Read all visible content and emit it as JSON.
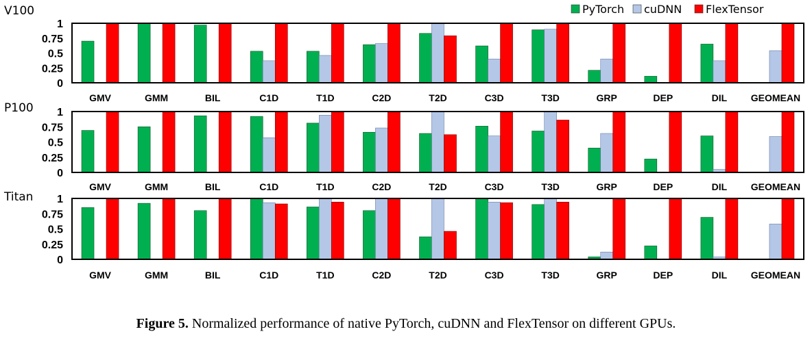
{
  "legend": [
    {
      "name": "PyTorch",
      "color": "#00b050"
    },
    {
      "name": "cuDNN",
      "color": "#b4c7e7"
    },
    {
      "name": "FlexTensor",
      "color": "#ff0000"
    }
  ],
  "caption": {
    "label": "Figure 5.",
    "text": " Normalized performance of native PyTorch, cuDNN and FlexTensor on different GPUs."
  },
  "chart_data": [
    {
      "type": "bar",
      "title": "V100",
      "categories": [
        "GMV",
        "GMM",
        "BIL",
        "C1D",
        "T1D",
        "C2D",
        "T2D",
        "C3D",
        "T3D",
        "GRP",
        "DEP",
        "DIL",
        "GEOMEAN"
      ],
      "yticks": [
        "0",
        "0.25",
        "0.5",
        "0.75",
        "1"
      ],
      "ylim": [
        0,
        1
      ],
      "series": [
        {
          "name": "PyTorch",
          "values": [
            0.7,
            1.0,
            0.97,
            0.53,
            0.53,
            0.64,
            0.83,
            0.62,
            0.89,
            0.21,
            0.11,
            0.65,
            null
          ]
        },
        {
          "name": "cuDNN",
          "values": [
            null,
            null,
            null,
            0.37,
            0.46,
            0.66,
            1.0,
            0.4,
            0.9,
            0.4,
            null,
            0.37,
            0.54
          ]
        },
        {
          "name": "FlexTensor",
          "values": [
            1.0,
            1.0,
            1.0,
            1.0,
            1.0,
            1.0,
            0.79,
            1.0,
            1.0,
            1.0,
            1.0,
            1.0,
            1.0
          ]
        }
      ]
    },
    {
      "type": "bar",
      "title": "P100",
      "categories": [
        "GMV",
        "GMM",
        "BIL",
        "C1D",
        "T1D",
        "C2D",
        "T2D",
        "C3D",
        "T3D",
        "GRP",
        "DEP",
        "DIL",
        "GEOMEAN"
      ],
      "yticks": [
        "0",
        "0.25",
        "0.5",
        "0.75",
        "1"
      ],
      "ylim": [
        0,
        1
      ],
      "series": [
        {
          "name": "PyTorch",
          "values": [
            0.69,
            0.75,
            0.93,
            0.92,
            0.81,
            0.66,
            0.64,
            0.76,
            0.68,
            0.4,
            0.22,
            0.6,
            null
          ]
        },
        {
          "name": "cuDNN",
          "values": [
            null,
            null,
            null,
            0.57,
            0.94,
            0.73,
            1.0,
            0.6,
            1.0,
            0.64,
            null,
            0.05,
            0.59
          ]
        },
        {
          "name": "FlexTensor",
          "values": [
            1.0,
            1.0,
            1.0,
            1.0,
            1.0,
            1.0,
            0.62,
            1.0,
            0.86,
            1.0,
            1.0,
            1.0,
            1.0
          ]
        }
      ]
    },
    {
      "type": "bar",
      "title": "Titan",
      "categories": [
        "GMV",
        "GMM",
        "BIL",
        "C1D",
        "T1D",
        "C2D",
        "T2D",
        "C3D",
        "T3D",
        "GRP",
        "DEP",
        "DIL",
        "GEOMEAN"
      ],
      "yticks": [
        "0",
        "0.25",
        "0.5",
        "0.75",
        "1"
      ],
      "ylim": [
        0,
        1
      ],
      "series": [
        {
          "name": "PyTorch",
          "values": [
            0.85,
            0.92,
            0.8,
            1.0,
            0.86,
            0.8,
            0.37,
            1.0,
            0.9,
            0.04,
            0.22,
            0.69,
            null
          ]
        },
        {
          "name": "cuDNN",
          "values": [
            null,
            null,
            null,
            0.93,
            1.0,
            1.0,
            1.0,
            0.94,
            1.0,
            0.12,
            null,
            0.04,
            0.58
          ]
        },
        {
          "name": "FlexTensor",
          "values": [
            1.0,
            1.0,
            1.0,
            0.91,
            0.94,
            1.0,
            0.46,
            0.93,
            0.94,
            1.0,
            1.0,
            1.0,
            1.0
          ]
        }
      ]
    }
  ]
}
